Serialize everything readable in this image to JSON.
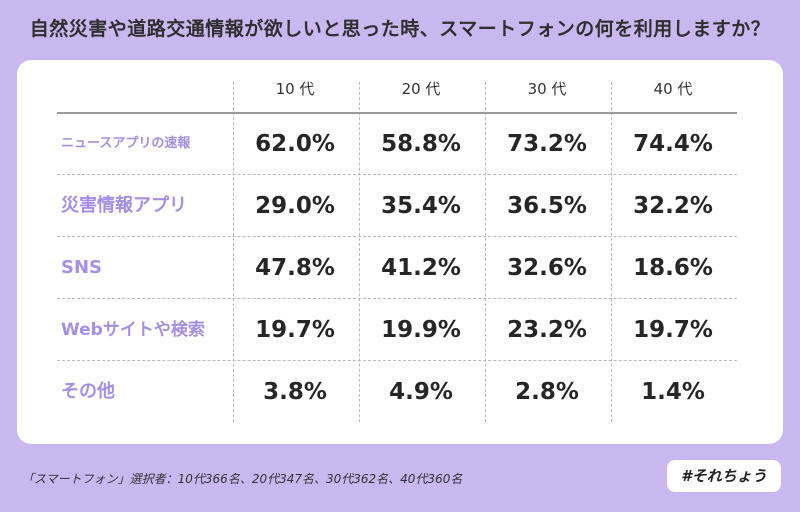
{
  "title": "自然災害や道路交通情報が欲しいと思った時、スマートフォンの何を利用しますか？",
  "footnote": "「スマートフォン」選択者：10代366名、20代347名、30代362名、40代360名",
  "brand_tag": "#それちょう",
  "colors": {
    "background": "#c9b8f0",
    "card": "#ffffff",
    "row_label": "#a48ee6",
    "value_text": "#262626"
  },
  "chart_data": {
    "type": "table",
    "title": "自然災害や道路交通情報が欲しいと思った時、スマートフォンの何を利用しますか？",
    "columns": [
      "10 代",
      "20 代",
      "30 代",
      "40 代"
    ],
    "rows": [
      {
        "label": "ニュースアプリの速報",
        "values": [
          "62.0%",
          "58.8%",
          "73.2%",
          "74.4%"
        ]
      },
      {
        "label": "災害情報アプリ",
        "values": [
          "29.0%",
          "35.4%",
          "36.5%",
          "32.2%"
        ]
      },
      {
        "label": "SNS",
        "values": [
          "47.8%",
          "41.2%",
          "32.6%",
          "18.6%"
        ]
      },
      {
        "label": "Webサイトや検索",
        "values": [
          "19.7%",
          "19.9%",
          "23.2%",
          "19.7%"
        ]
      },
      {
        "label": "その他",
        "values": [
          "3.8%",
          "4.9%",
          "2.8%",
          "1.4%"
        ]
      }
    ]
  }
}
